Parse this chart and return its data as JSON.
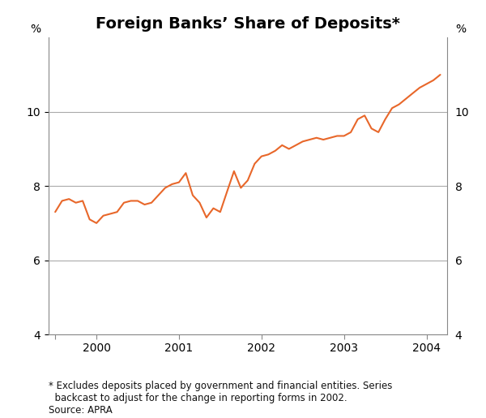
{
  "title": "Foreign Banks’ Share of Deposits*",
  "line_color": "#e8672a",
  "line_width": 1.5,
  "background_color": "#ffffff",
  "ylim": [
    4,
    12
  ],
  "yticks": [
    4,
    6,
    8,
    10
  ],
  "ylabel_left": "%",
  "ylabel_right": "%",
  "footnote": "* Excludes deposits placed by government and financial entities. Series\n  backcast to adjust for the change in reporting forms in 2002.\nSource: APRA",
  "footnote_fontsize": 8.5,
  "title_fontsize": 14,
  "grid_color": "#aaaaaa",
  "grid_linewidth": 0.8,
  "x_data": [
    1999.5,
    1999.583,
    1999.667,
    1999.75,
    1999.833,
    1999.917,
    2000.0,
    2000.083,
    2000.167,
    2000.25,
    2000.333,
    2000.417,
    2000.5,
    2000.583,
    2000.667,
    2000.75,
    2000.833,
    2000.917,
    2001.0,
    2001.083,
    2001.167,
    2001.25,
    2001.333,
    2001.417,
    2001.5,
    2001.583,
    2001.667,
    2001.75,
    2001.833,
    2001.917,
    2002.0,
    2002.083,
    2002.167,
    2002.25,
    2002.333,
    2002.417,
    2002.5,
    2002.583,
    2002.667,
    2002.75,
    2002.833,
    2002.917,
    2003.0,
    2003.083,
    2003.167,
    2003.25,
    2003.333,
    2003.417,
    2003.5,
    2003.583,
    2003.667,
    2003.75,
    2003.833,
    2003.917,
    2004.0,
    2004.083,
    2004.167
  ],
  "y_data": [
    7.3,
    7.6,
    7.65,
    7.55,
    7.6,
    7.1,
    7.0,
    7.2,
    7.25,
    7.3,
    7.55,
    7.6,
    7.6,
    7.5,
    7.55,
    7.75,
    7.95,
    8.05,
    8.1,
    8.35,
    7.75,
    7.55,
    7.15,
    7.4,
    7.3,
    7.85,
    8.4,
    7.95,
    8.15,
    8.6,
    8.8,
    8.85,
    8.95,
    9.1,
    9.0,
    9.1,
    9.2,
    9.25,
    9.3,
    9.25,
    9.3,
    9.35,
    9.35,
    9.45,
    9.8,
    9.9,
    9.55,
    9.45,
    9.8,
    10.1,
    10.2,
    10.35,
    10.5,
    10.65,
    10.75,
    10.85,
    11.0
  ],
  "xticks": [
    1999.5,
    2000.0,
    2001.0,
    2002.0,
    2003.0,
    2004.0
  ],
  "xticklabels": [
    "",
    "2000",
    "2001",
    "2002",
    "2003",
    "2004"
  ],
  "xlim": [
    1999.42,
    2004.25
  ]
}
